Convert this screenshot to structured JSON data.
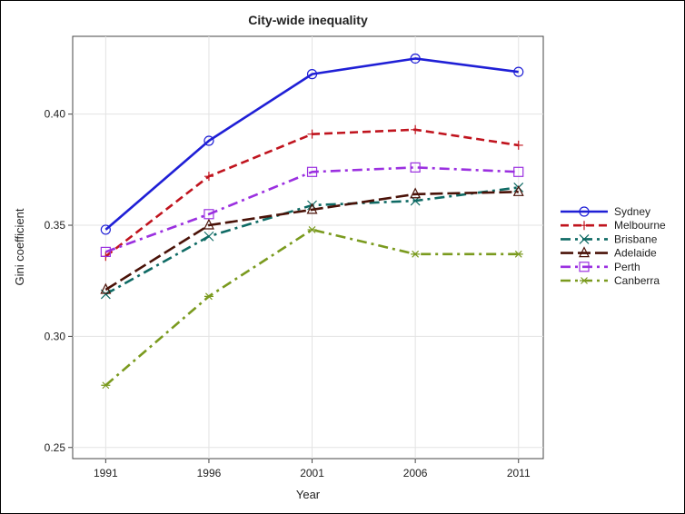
{
  "chart_data": {
    "type": "line",
    "title": "City-wide inequality",
    "xlabel": "Year",
    "ylabel": "Gini coefficient",
    "x": [
      1991,
      1996,
      2001,
      2006,
      2011
    ],
    "xticks": [
      "1991",
      "1996",
      "2001",
      "2006",
      "2011"
    ],
    "yticks": [
      "0.25",
      "0.30",
      "0.35",
      "0.40"
    ],
    "ylim": [
      0.245,
      0.435
    ],
    "grid": true,
    "legend_position": "right",
    "series": [
      {
        "name": "Sydney",
        "values": [
          0.348,
          0.388,
          0.418,
          0.425,
          0.419
        ],
        "color": "#1f1fd6",
        "dash": "solid",
        "marker": "circle"
      },
      {
        "name": "Melbourne",
        "values": [
          0.336,
          0.372,
          0.391,
          0.393,
          0.386
        ],
        "color": "#c0141e",
        "dash": "dash",
        "marker": "plus"
      },
      {
        "name": "Brisbane",
        "values": [
          0.319,
          0.345,
          0.359,
          0.361,
          0.367
        ],
        "color": "#0e6a64",
        "dash": "dashdot",
        "marker": "x"
      },
      {
        "name": "Adelaide",
        "values": [
          0.321,
          0.35,
          0.357,
          0.364,
          0.365
        ],
        "color": "#4a1208",
        "dash": "longdash",
        "marker": "triangle"
      },
      {
        "name": "Perth",
        "values": [
          0.338,
          0.355,
          0.374,
          0.376,
          0.374
        ],
        "color": "#9b30e0",
        "dash": "dashdot",
        "marker": "square"
      },
      {
        "name": "Canberra",
        "values": [
          0.278,
          0.318,
          0.348,
          0.337,
          0.337
        ],
        "color": "#7a9a1e",
        "dash": "dashdot",
        "marker": "star"
      }
    ]
  }
}
